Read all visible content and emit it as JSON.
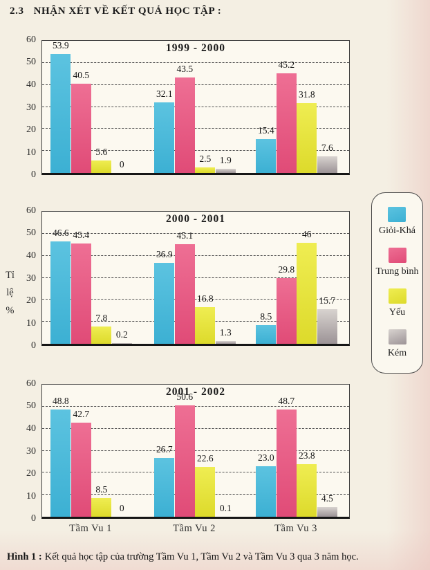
{
  "page": {
    "section_number": "2.3",
    "title": "NHẬN XÉT VỀ KẾT QUẢ HỌC TẬP :",
    "caption_label": "Hình 1 :",
    "caption_text": "Kết quả học tập của trường Tầm Vu 1, Tầm Vu 2 và Tầm Vu 3 qua 3 năm học."
  },
  "y_axis": {
    "label_lines": [
      "Tỉ",
      "lệ",
      "%"
    ],
    "ticks": [
      "60",
      "50",
      "40",
      "30",
      "20",
      "10",
      "0"
    ],
    "max": 60
  },
  "legend": {
    "items": [
      {
        "key": "gioi-kha",
        "label": "Giỏi-Khá",
        "color": "#5cc3e0",
        "color2": "#3cb0d3"
      },
      {
        "key": "trung-binh",
        "label": "Trung bình",
        "color": "#ee6f94",
        "color2": "#e04b77"
      },
      {
        "key": "yeu",
        "label": "Yếu",
        "color": "#efed52",
        "color2": "#ddda2b"
      },
      {
        "key": "kem",
        "label": "Kém",
        "color": "#d8d3cf",
        "color2": "#9c9396"
      }
    ]
  },
  "chart_data": [
    {
      "type": "bar",
      "title": "1999 - 2000",
      "categories": [
        "Tầm Vu 1",
        "Tầm Vu 2",
        "Tầm Vu 3"
      ],
      "series": [
        {
          "name": "Giỏi-Khá",
          "values": [
            "53.9",
            "32.1",
            "15.4"
          ]
        },
        {
          "name": "Trung bình",
          "values": [
            "40.5",
            "43.5",
            "45.2"
          ]
        },
        {
          "name": "Yếu",
          "values": [
            "5.6",
            "2.5",
            "31.8"
          ]
        },
        {
          "name": "Kém",
          "values": [
            "0",
            "1.9",
            "7.6"
          ]
        }
      ],
      "ylabel": "Tỉ lệ %",
      "ylim": [
        0,
        60
      ],
      "grid": true,
      "legend_position": "right",
      "show_x_labels": false
    },
    {
      "type": "bar",
      "title": "2000 - 2001",
      "categories": [
        "Tầm Vu 1",
        "Tầm Vu 2",
        "Tầm Vu 3"
      ],
      "series": [
        {
          "name": "Giỏi-Khá",
          "values": [
            "46.6",
            "36.9",
            "8.5"
          ]
        },
        {
          "name": "Trung bình",
          "values": [
            "45.4",
            "45.1",
            "29.8"
          ]
        },
        {
          "name": "Yếu",
          "values": [
            "7.8",
            "16.8",
            "46"
          ]
        },
        {
          "name": "Kém",
          "values": [
            "0.2",
            "1.3",
            "15.7"
          ]
        }
      ],
      "ylabel": "Tỉ lệ %",
      "ylim": [
        0,
        60
      ],
      "grid": true,
      "legend_position": "right",
      "show_x_labels": false
    },
    {
      "type": "bar",
      "title": "2001 - 2002",
      "categories": [
        "Tầm Vu 1",
        "Tầm Vu 2",
        "Tầm Vu 3"
      ],
      "series": [
        {
          "name": "Giỏi-Khá",
          "values": [
            "48.8",
            "26.7",
            "23.0"
          ]
        },
        {
          "name": "Trung bình",
          "values": [
            "42.7",
            "50.6",
            "48.7"
          ]
        },
        {
          "name": "Yếu",
          "values": [
            "8.5",
            "22.6",
            "23.8"
          ]
        },
        {
          "name": "Kém",
          "values": [
            "0",
            "0.1",
            "4.5"
          ]
        }
      ],
      "ylabel": "Tỉ lệ %",
      "ylim": [
        0,
        60
      ],
      "grid": true,
      "legend_position": "right",
      "show_x_labels": true
    }
  ]
}
